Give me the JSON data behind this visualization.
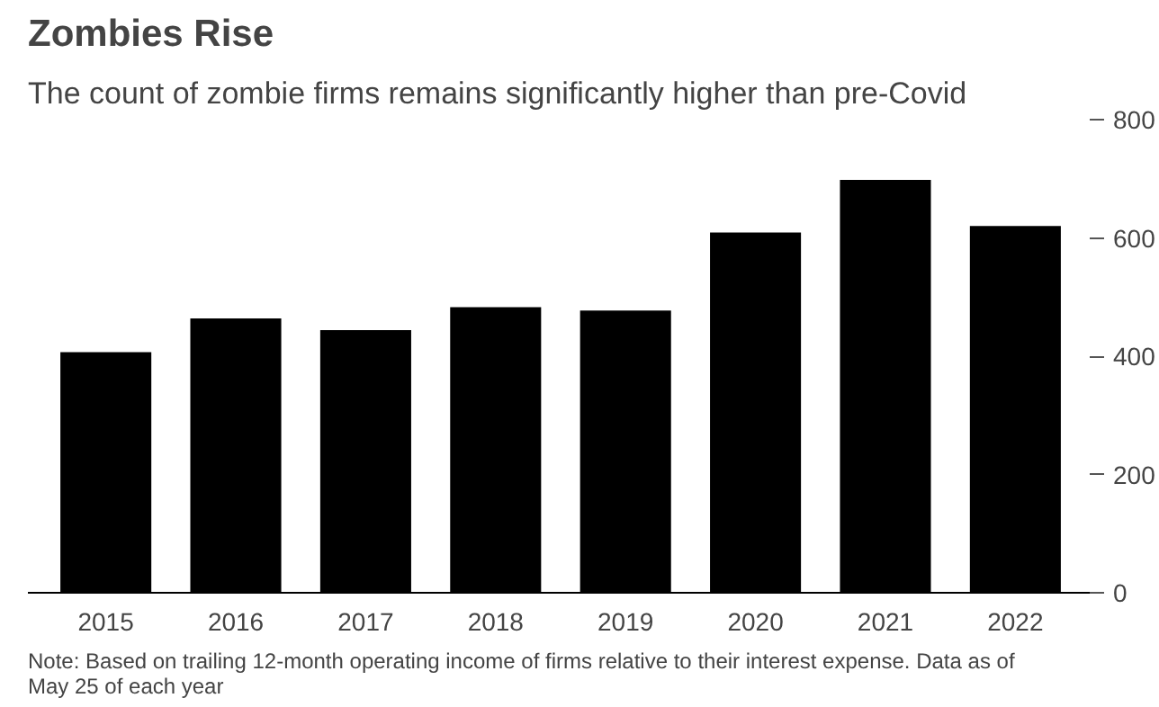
{
  "chart_data": {
    "type": "bar",
    "title": "Zombies Rise",
    "subtitle": "The count of zombie firms remains significantly higher than pre-Covid",
    "categories": [
      "2015",
      "2016",
      "2017",
      "2018",
      "2019",
      "2020",
      "2021",
      "2022"
    ],
    "values": [
      407,
      464,
      444,
      483,
      477,
      609,
      698,
      620
    ],
    "color": "#000000",
    "ylim": [
      0,
      800
    ],
    "yticks": [
      0,
      200,
      400,
      600,
      800
    ],
    "grid": false,
    "annotations": [
      "Note: Based on trailing 12-month operating income of firms relative to their interest expense. Data as of May 25 of each year"
    ]
  }
}
